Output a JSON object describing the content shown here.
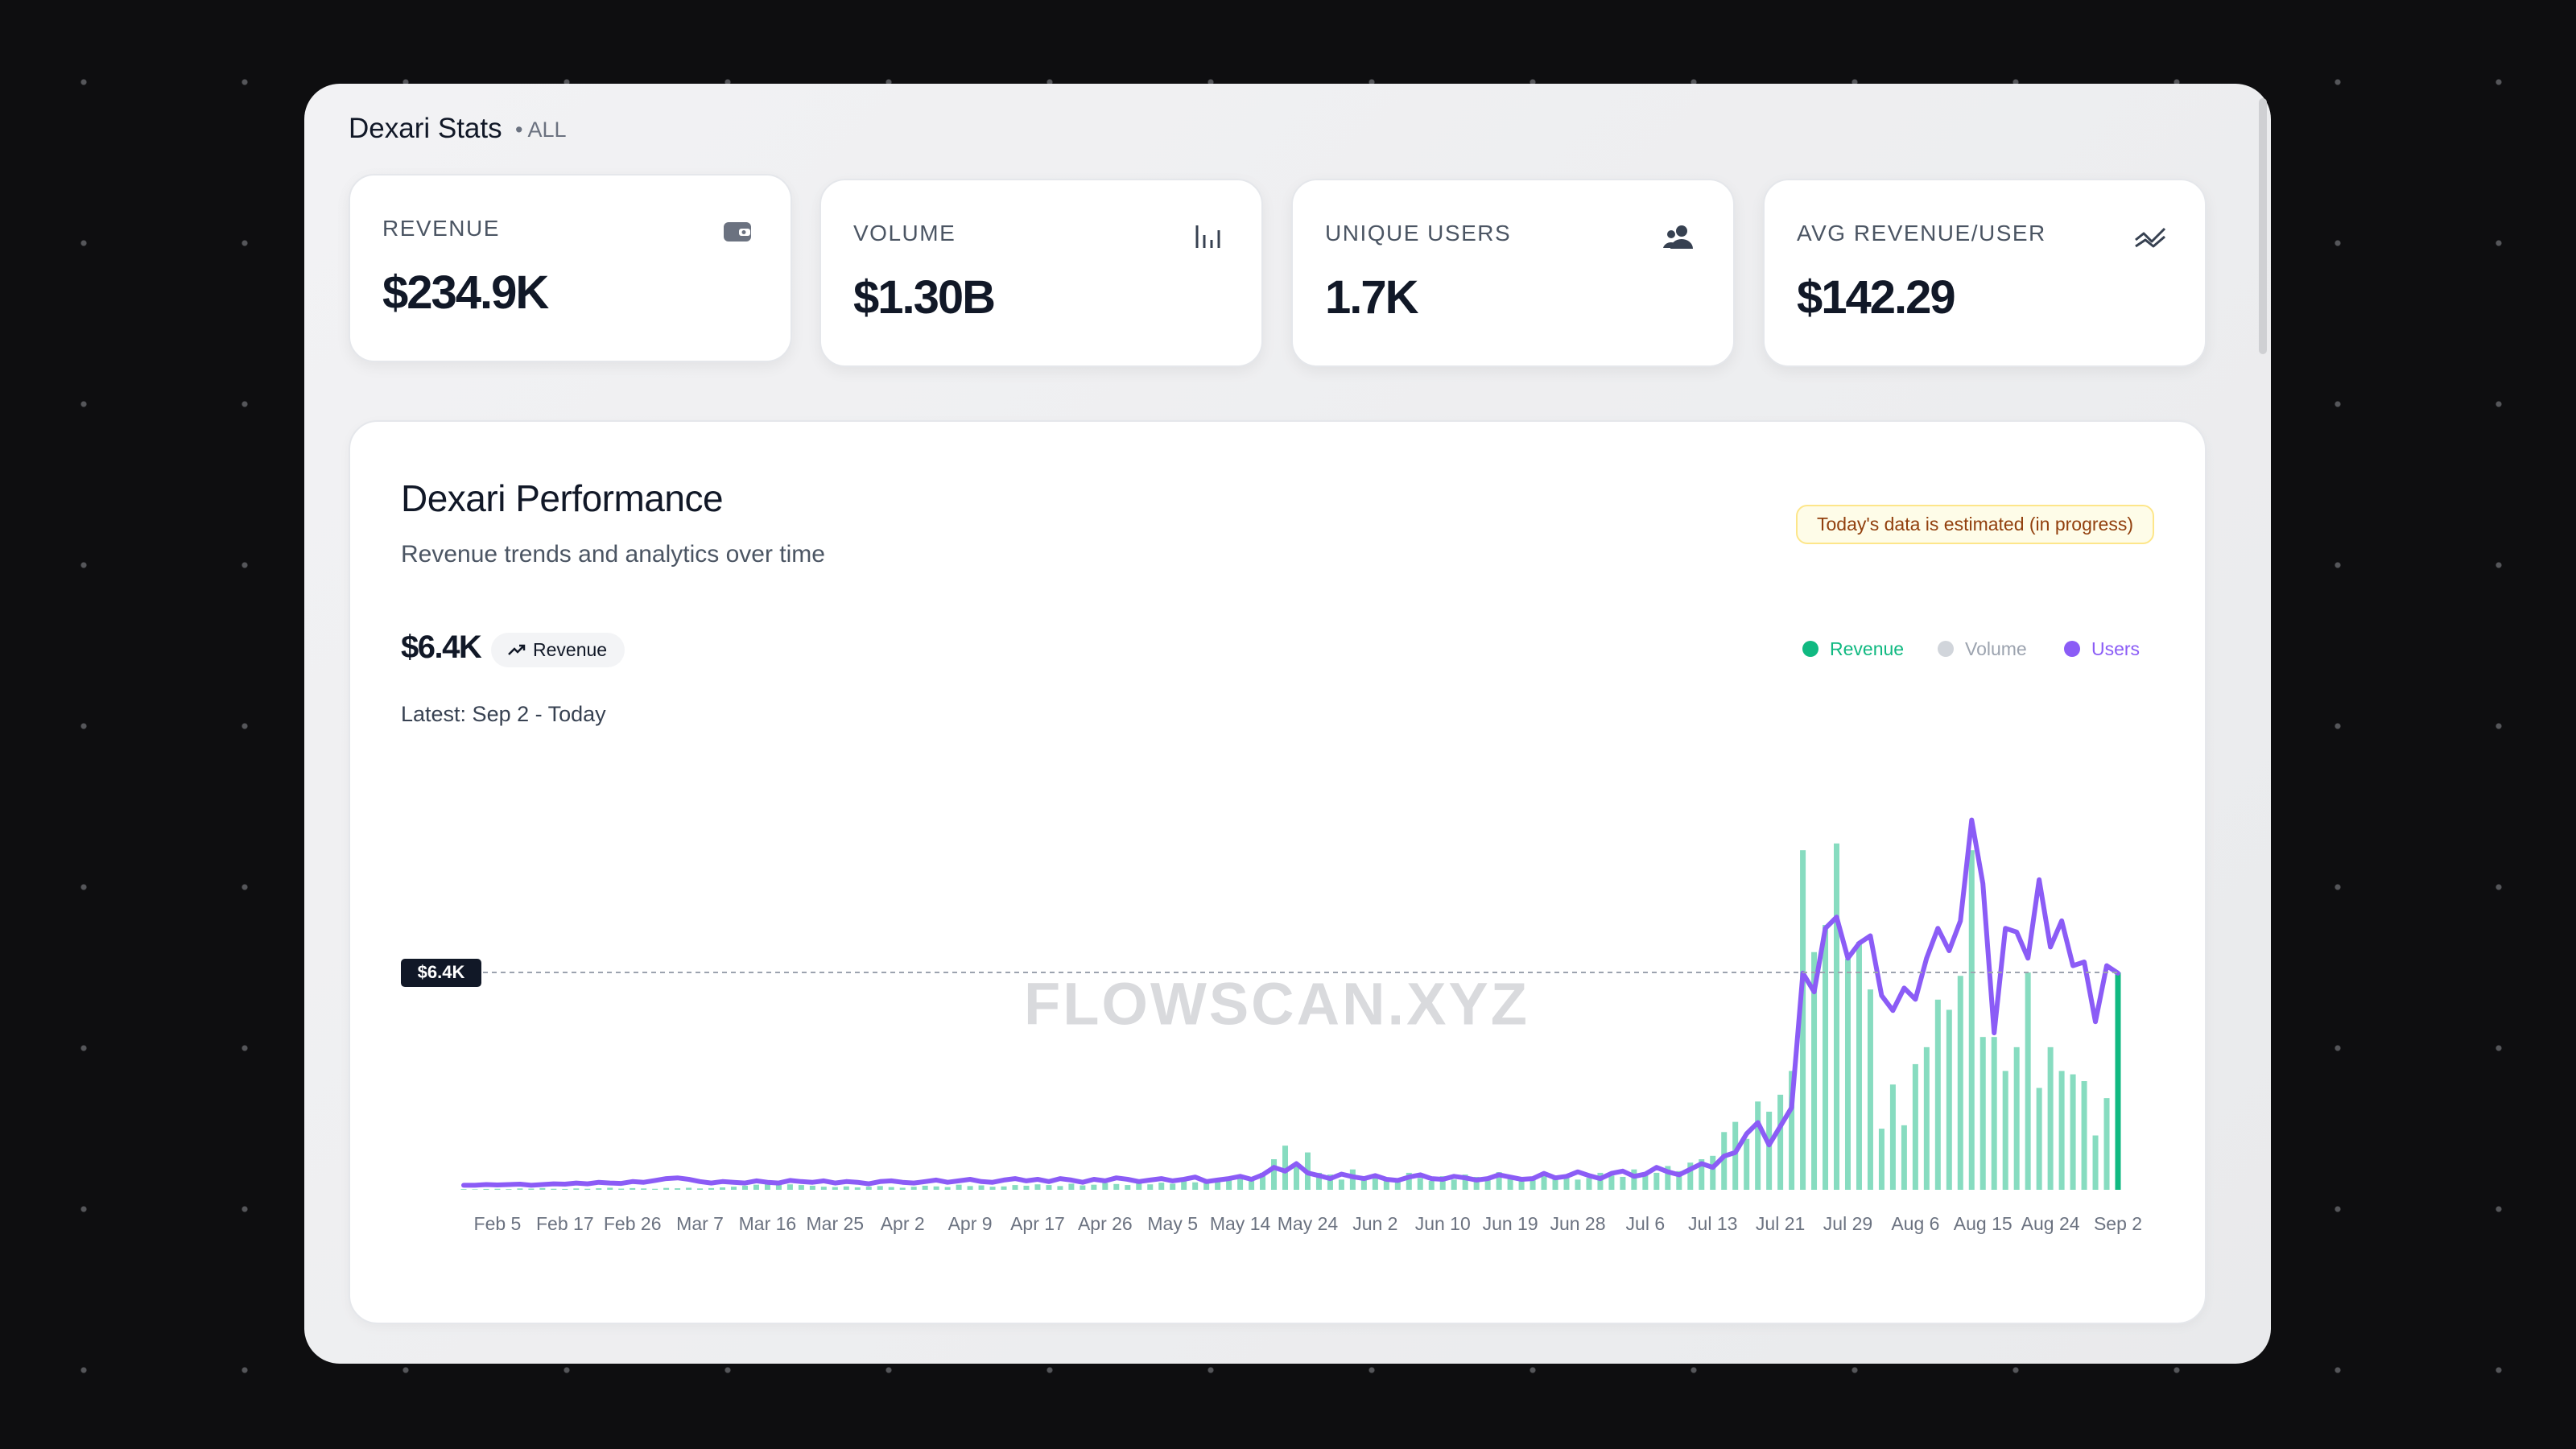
{
  "header": {
    "title": "Dexari Stats",
    "scope": "• ALL"
  },
  "stats": [
    {
      "label": "REVENUE",
      "value": "$234.9K"
    },
    {
      "label": "VOLUME",
      "value": "$1.30B"
    },
    {
      "label": "UNIQUE USERS",
      "value": "1.7K"
    },
    {
      "label": "AVG REVENUE/USER",
      "value": "$142.29"
    }
  ],
  "performance": {
    "title": "Dexari Performance",
    "subtitle": "Revenue trends and analytics over time",
    "badge": "Today's data is estimated (in progress)",
    "current_value": "$6.4K",
    "selected_metric": "Revenue",
    "latest": "Latest: Sep 2 - Today",
    "watermark": "FLOWSCAN.XYZ"
  },
  "chart_data": {
    "type": "combo",
    "categories": [
      null,
      null,
      null,
      "Feb 5",
      null,
      null,
      null,
      null,
      null,
      "Feb 17",
      null,
      null,
      null,
      null,
      null,
      "Feb 26",
      null,
      null,
      null,
      null,
      null,
      "Mar 7",
      null,
      null,
      null,
      null,
      null,
      "Mar 16",
      null,
      null,
      null,
      null,
      null,
      "Mar 25",
      null,
      null,
      null,
      null,
      null,
      "Apr 2",
      null,
      null,
      null,
      null,
      null,
      "Apr 9",
      null,
      null,
      null,
      null,
      null,
      "Apr 17",
      null,
      null,
      null,
      null,
      null,
      "Apr 26",
      null,
      null,
      null,
      null,
      null,
      "May 5",
      null,
      null,
      null,
      null,
      null,
      "May 14",
      null,
      null,
      null,
      null,
      null,
      "May 24",
      null,
      null,
      null,
      null,
      null,
      "Jun 2",
      null,
      null,
      null,
      null,
      null,
      "Jun 10",
      null,
      null,
      null,
      null,
      null,
      "Jun 19",
      null,
      null,
      null,
      null,
      null,
      "Jun 28",
      null,
      null,
      null,
      null,
      null,
      "Jul 6",
      null,
      null,
      null,
      null,
      null,
      "Jul 13",
      null,
      null,
      null,
      null,
      null,
      "Jul 21",
      null,
      null,
      null,
      null,
      null,
      "Jul 29",
      null,
      null,
      null,
      null,
      null,
      "Aug 6",
      null,
      null,
      null,
      null,
      null,
      "Aug 15",
      null,
      null,
      null,
      null,
      null,
      "Aug 24",
      null,
      null,
      null,
      null,
      null,
      "Sep 2"
    ],
    "series": [
      {
        "name": "Revenue",
        "type": "bar",
        "color": "#10b981",
        "values": [
          20,
          15,
          25,
          30,
          20,
          40,
          35,
          50,
          30,
          25,
          40,
          30,
          45,
          60,
          35,
          50,
          40,
          30,
          55,
          45,
          60,
          40,
          50,
          70,
          90,
          120,
          150,
          200,
          180,
          160,
          140,
          120,
          90,
          80,
          100,
          70,
          90,
          110,
          80,
          60,
          90,
          120,
          100,
          80,
          150,
          110,
          130,
          90,
          100,
          140,
          120,
          160,
          140,
          110,
          180,
          130,
          150,
          200,
          170,
          140,
          190,
          160,
          210,
          180,
          250,
          220,
          300,
          260,
          350,
          420,
          380,
          500,
          900,
          1300,
          700,
          1100,
          500,
          450,
          300,
          600,
          350,
          400,
          280,
          320,
          500,
          350,
          260,
          400,
          300,
          450,
          380,
          300,
          520,
          400,
          280,
          350,
          450,
          380,
          420,
          300,
          350,
          500,
          420,
          380,
          600,
          450,
          500,
          700,
          550,
          800,
          900,
          1000,
          1700,
          2000,
          1500,
          2600,
          2300,
          2800,
          3500,
          10000,
          7000,
          7800,
          10200,
          6800,
          7300,
          5900,
          1800,
          3100,
          1900,
          3700,
          4200,
          5600,
          5300,
          6300,
          10000,
          4500,
          4500,
          3500,
          4200,
          6400,
          3000,
          4200,
          3500,
          3400,
          3200,
          1600,
          2700,
          6400
        ]
      },
      {
        "name": "Volume",
        "type": "hidden",
        "color": "#d1d5db"
      },
      {
        "name": "Users",
        "type": "line",
        "color": "#8b5cf6",
        "axis": "y2",
        "values": [
          12,
          12,
          14,
          13,
          14,
          15,
          12,
          14,
          16,
          15,
          18,
          16,
          20,
          18,
          17,
          22,
          20,
          25,
          30,
          32,
          28,
          22,
          18,
          22,
          20,
          18,
          24,
          20,
          18,
          25,
          22,
          20,
          24,
          18,
          22,
          20,
          16,
          22,
          24,
          20,
          18,
          22,
          26,
          20,
          24,
          28,
          22,
          20,
          26,
          30,
          24,
          28,
          22,
          30,
          26,
          20,
          28,
          24,
          32,
          28,
          22,
          26,
          30,
          24,
          28,
          34,
          22,
          26,
          30,
          36,
          28,
          40,
          60,
          50,
          70,
          45,
          38,
          30,
          42,
          35,
          30,
          38,
          28,
          25,
          34,
          40,
          30,
          28,
          36,
          32,
          26,
          30,
          40,
          34,
          28,
          30,
          44,
          32,
          36,
          48,
          38,
          30,
          44,
          50,
          36,
          42,
          60,
          48,
          40,
          55,
          70,
          60,
          90,
          100,
          150,
          180,
          120,
          170,
          220,
          580,
          530,
          700,
          730,
          620,
          660,
          680,
          520,
          480,
          540,
          510,
          620,
          700,
          640,
          720,
          990,
          820,
          420,
          700,
          690,
          620,
          830,
          650,
          720,
          600,
          610,
          450,
          600,
          580
        ]
      }
    ],
    "ylim": [
      0,
      11000
    ],
    "y2lim": [
      0,
      1000
    ],
    "reference_line": {
      "value": 6400,
      "label": "$6.4K"
    },
    "grid": false
  }
}
